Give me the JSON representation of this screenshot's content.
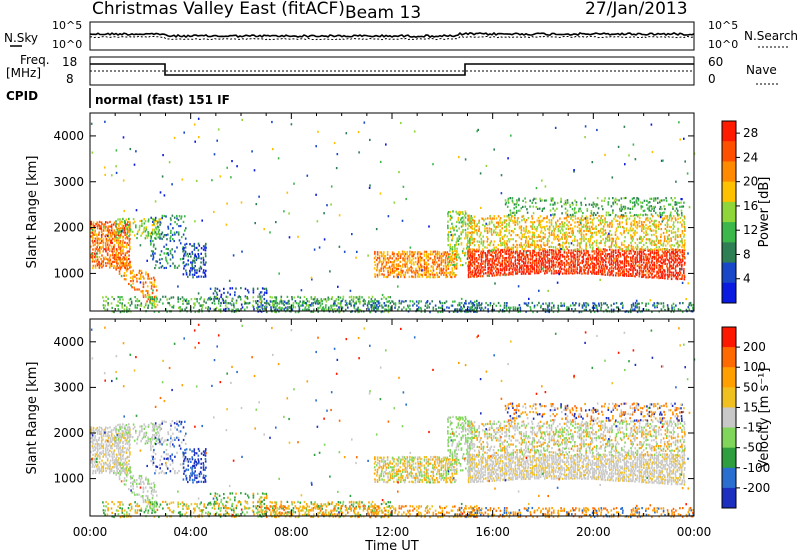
{
  "header": {
    "title": "Christmas Valley East (fitACF)",
    "beam": "Beam 13",
    "date": "27/Jan/2013"
  },
  "panels": {
    "nsky_label": "N.Sky",
    "nsearch_label": "N.Search",
    "nsky_ticks": [
      "10^5",
      "10^0"
    ],
    "freq_label_1": "Freq.",
    "freq_label_2": "[MHz]",
    "freq_ticks": [
      "18",
      "8"
    ],
    "nave_label": "Nave",
    "nave_ticks": [
      "60",
      "0"
    ],
    "cpid_label": "CPID",
    "cpid_value": "normal (fast) 151 IF"
  },
  "chart_data": [
    {
      "type": "heatmap",
      "title": "",
      "xlabel": "Time UT",
      "ylabel": "Slant Range [km]",
      "x_tick_labels": [
        "00:00",
        "04:00",
        "08:00",
        "12:00",
        "16:00",
        "20:00",
        "00:00"
      ],
      "y_tick_labels": [
        "1000",
        "2000",
        "3000",
        "4000"
      ],
      "xlim_hours": [
        0,
        24
      ],
      "ylim": [
        180,
        4500
      ],
      "colorbar": {
        "label": "Power [dB]",
        "ticks": [
          "4",
          "8",
          "12",
          "16",
          "20",
          "24",
          "28"
        ],
        "range": [
          0,
          30
        ],
        "colors": [
          "#0a1ae0",
          "#1848c8",
          "#2f7f55",
          "#3cb84a",
          "#8ed63a",
          "#ffc000",
          "#ff8a00",
          "#ff5000",
          "#ff1a00"
        ]
      }
    },
    {
      "type": "heatmap",
      "title": "",
      "xlabel": "Time UT",
      "ylabel": "Slant Range [km]",
      "x_tick_labels": [
        "00:00",
        "04:00",
        "08:00",
        "12:00",
        "16:00",
        "20:00",
        "00:00"
      ],
      "y_tick_labels": [
        "1000",
        "2000",
        "3000",
        "4000"
      ],
      "xlim_hours": [
        0,
        24
      ],
      "ylim": [
        180,
        4500
      ],
      "colorbar": {
        "label": "Velocity [m s⁻¹]",
        "ticks": [
          "200",
          "100",
          "50",
          "15",
          "-15",
          "-50",
          "-100",
          "-200"
        ],
        "colors": [
          "#1c2fbf",
          "#2a6fd0",
          "#2e9e3e",
          "#7fd65a",
          "#c8c8c8",
          "#f0c020",
          "#ffa000",
          "#ff6a00",
          "#ff1800"
        ]
      }
    }
  ]
}
